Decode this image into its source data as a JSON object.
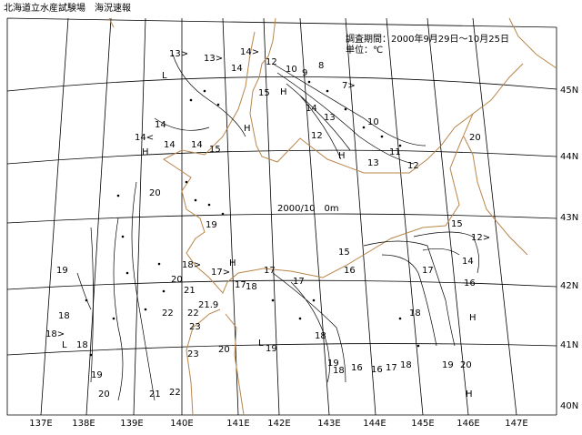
{
  "header": {
    "title": "北海道立水産試験場　海況速報",
    "period": "調査期間：2000年9月29日～10月25日",
    "unit": "単位：℃",
    "map_label": "2000/10　0m"
  },
  "longitudes": [
    "137E",
    "138E",
    "139E",
    "140E",
    "141E",
    "142E",
    "143E",
    "144E",
    "145E",
    "146E",
    "147E"
  ],
  "latitudes": [
    "45N",
    "44N",
    "43N",
    "42N",
    "41N",
    "40N"
  ],
  "contour_labels": [
    "13>",
    "13>",
    "14>",
    "14",
    "L",
    "15",
    "H",
    "12",
    "10",
    "9",
    "8",
    "7>",
    "14",
    "14<",
    "14",
    "14",
    "15",
    "H",
    "H",
    "14",
    "13",
    "12",
    "H",
    "13",
    "12",
    "11",
    "10",
    "20",
    "19",
    "19",
    "18>",
    "20",
    "21",
    "21.9",
    "22",
    "22",
    "23",
    "23",
    "18",
    "18>",
    "L",
    "18",
    "19",
    "20",
    "21",
    "22",
    "20",
    "19",
    "L",
    "17>",
    "17",
    "17",
    "18",
    "17",
    "H",
    "15",
    "16",
    "17",
    "15",
    "12>",
    "14",
    "16",
    "18",
    "H",
    "H",
    "19",
    "20",
    "18",
    "19",
    "18",
    "16",
    "16",
    "17",
    "18",
    "20",
    "H"
  ]
}
